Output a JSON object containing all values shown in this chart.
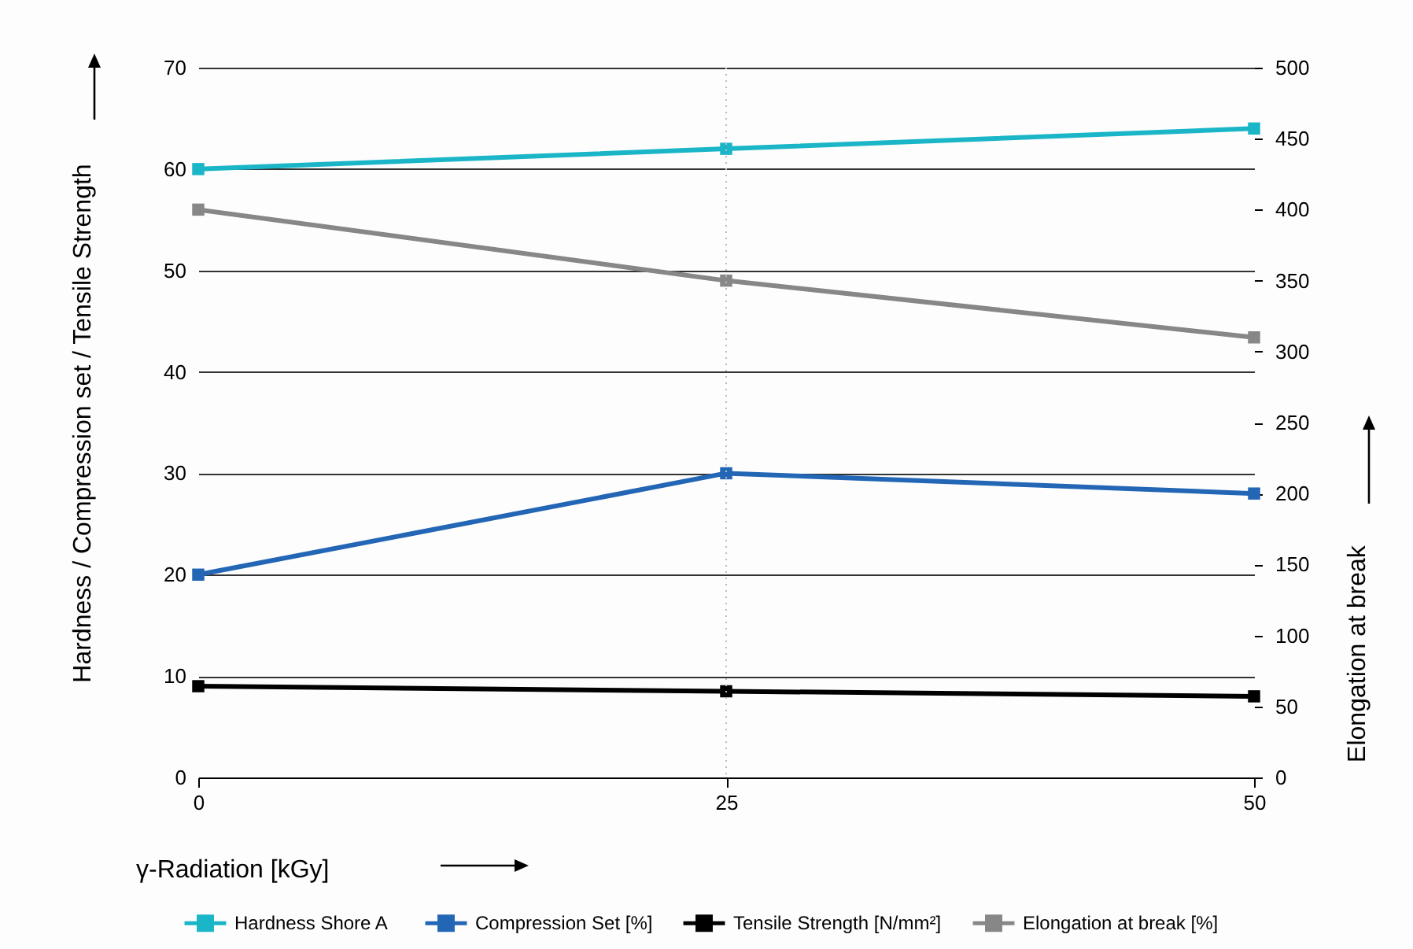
{
  "chart_data": {
    "type": "line",
    "xlabel": "γ-Radiation [kGy]",
    "ylabel": "Hardness / Compression set / Tensile Strength",
    "y2label": "Elongation at break",
    "x": [
      0,
      25,
      50
    ],
    "xlim": [
      0,
      50
    ],
    "xticks": [
      0,
      25,
      50
    ],
    "ylim": [
      0,
      70
    ],
    "yticks": [
      0,
      10,
      20,
      30,
      40,
      50,
      60,
      70
    ],
    "y2lim": [
      0,
      500
    ],
    "y2ticks": [
      0,
      50,
      100,
      150,
      200,
      250,
      300,
      350,
      400,
      450,
      500
    ],
    "series": [
      {
        "name": "Hardness  Shore A",
        "color": "#1ab6c8",
        "values": [
          60,
          62,
          64
        ]
      },
      {
        "name": "Compression Set [%]",
        "color": "#2266b5",
        "values": [
          20,
          30,
          28
        ]
      },
      {
        "name": "Tensile Strength [N/mm²]",
        "color": "#000000",
        "values": [
          9,
          8.5,
          8
        ]
      },
      {
        "name": "Elongation at break [%]",
        "color": "#878787",
        "values": [
          400,
          350,
          310
        ],
        "axis": "y2"
      }
    ],
    "ref_lines": [
      {
        "axis": "x",
        "value": 25,
        "color": "#bbbbbb",
        "line_style": "dotted"
      }
    ],
    "grid": "y",
    "legend": "bottom",
    "marker": "square",
    "line_style": "solid"
  }
}
